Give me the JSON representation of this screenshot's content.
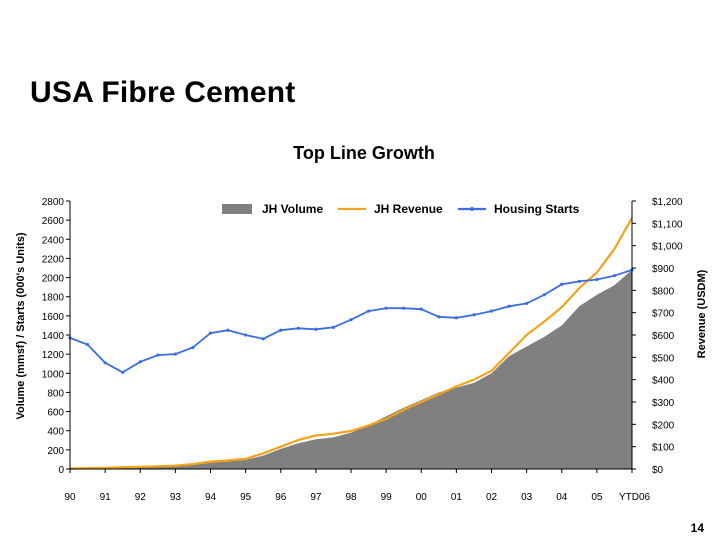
{
  "slide": {
    "title": "USA Fibre Cement",
    "page_number": "14"
  },
  "chart_data": {
    "type": "area",
    "title": "Top Line Growth",
    "ylabel_left": "Volume (mmsf)  /  Starts (000's Units)",
    "ylabel_right": "Revenue (USDM)",
    "ylim_left": [
      0,
      2800
    ],
    "ylim_right": [
      0,
      1200
    ],
    "y_ticks_left": [
      "0",
      "200",
      "400",
      "600",
      "800",
      "1000",
      "1200",
      "1400",
      "1600",
      "1800",
      "2000",
      "2200",
      "2400",
      "2600",
      "2800"
    ],
    "y_ticks_right": [
      "$0",
      "$100",
      "$200",
      "$300",
      "$400",
      "$500",
      "$600",
      "$700",
      "$800",
      "$900",
      "$1,000",
      "$1,100",
      "$1,200"
    ],
    "x_ticks": [
      "90",
      "91",
      "92",
      "93",
      "94",
      "95",
      "96",
      "97",
      "98",
      "99",
      "00",
      "01",
      "02",
      "03",
      "04",
      "05",
      "YTD06"
    ],
    "legend_position": "top",
    "grid": false,
    "colors": {
      "volume": "#808080",
      "revenue": "#F5A31A",
      "starts": "#3B6FE0"
    },
    "x": [
      1990,
      1990.5,
      1991,
      1991.5,
      1992,
      1992.5,
      1993,
      1993.5,
      1994,
      1994.5,
      1995,
      1995.5,
      1996,
      1996.5,
      1997,
      1997.5,
      1998,
      1998.5,
      1999,
      1999.5,
      2000,
      2000.5,
      2001,
      2001.5,
      2002,
      2002.5,
      2003,
      2003.5,
      2004,
      2004.5,
      2005,
      2005.5,
      2006
    ],
    "series": [
      {
        "name": "JH Volume",
        "axis": "left",
        "kind": "area",
        "values": [
          5,
          8,
          10,
          15,
          20,
          25,
          30,
          45,
          65,
          80,
          95,
          140,
          210,
          270,
          310,
          330,
          380,
          460,
          550,
          640,
          720,
          800,
          850,
          900,
          1000,
          1180,
          1280,
          1380,
          1500,
          1700,
          1820,
          1920,
          2080
        ]
      },
      {
        "name": "JH Revenue",
        "axis": "right",
        "kind": "line",
        "values": [
          2,
          4,
          5,
          8,
          10,
          12,
          15,
          22,
          33,
          38,
          45,
          70,
          100,
          130,
          150,
          158,
          170,
          195,
          225,
          265,
          300,
          335,
          370,
          400,
          440,
          520,
          600,
          660,
          725,
          810,
          880,
          985,
          1125
        ]
      },
      {
        "name": "Housing Starts",
        "axis": "left",
        "kind": "line",
        "values": [
          1370,
          1300,
          1110,
          1010,
          1120,
          1190,
          1200,
          1270,
          1420,
          1450,
          1400,
          1360,
          1450,
          1470,
          1460,
          1480,
          1560,
          1650,
          1680,
          1680,
          1670,
          1590,
          1580,
          1610,
          1650,
          1700,
          1730,
          1820,
          1930,
          1960,
          1980,
          2020,
          2080
        ]
      }
    ]
  }
}
